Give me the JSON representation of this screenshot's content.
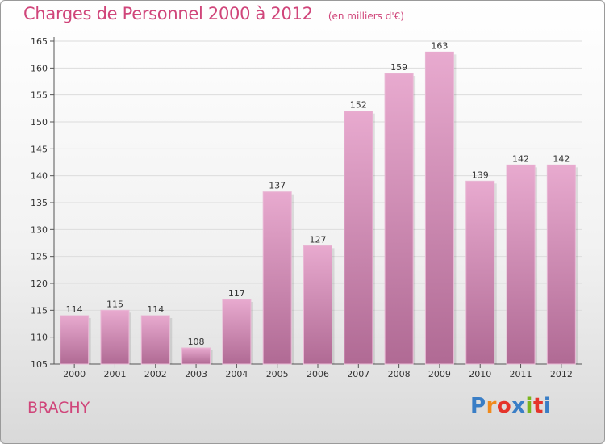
{
  "title": "Charges de Personnel 2000 à 2012",
  "subtitle": "(en milliers d'€)",
  "place": "BRACHY",
  "brand": {
    "text": "Proxiti",
    "letter_colors": [
      "#3a7ec6",
      "#f08a1c",
      "#e5342b",
      "#3a7ec6",
      "#7ab51d",
      "#e5342b",
      "#3a7ec6"
    ]
  },
  "colors": {
    "title": "#d0457a",
    "bar_top": "#e8aacf",
    "bar_bottom": "#b06a94"
  },
  "chart_data": {
    "type": "bar",
    "title": "Charges de Personnel 2000 à 2012",
    "subtitle": "(en milliers d'€)",
    "categories": [
      "2000",
      "2001",
      "2002",
      "2003",
      "2004",
      "2005",
      "2006",
      "2007",
      "2008",
      "2009",
      "2010",
      "2011",
      "2012"
    ],
    "values": [
      114,
      115,
      114,
      108,
      117,
      137,
      127,
      152,
      159,
      163,
      139,
      142,
      142
    ],
    "ylim": [
      105,
      165
    ],
    "yticks": [
      105,
      110,
      115,
      120,
      125,
      130,
      135,
      140,
      145,
      150,
      155,
      160,
      165
    ],
    "grid": true,
    "data_labels": true
  }
}
